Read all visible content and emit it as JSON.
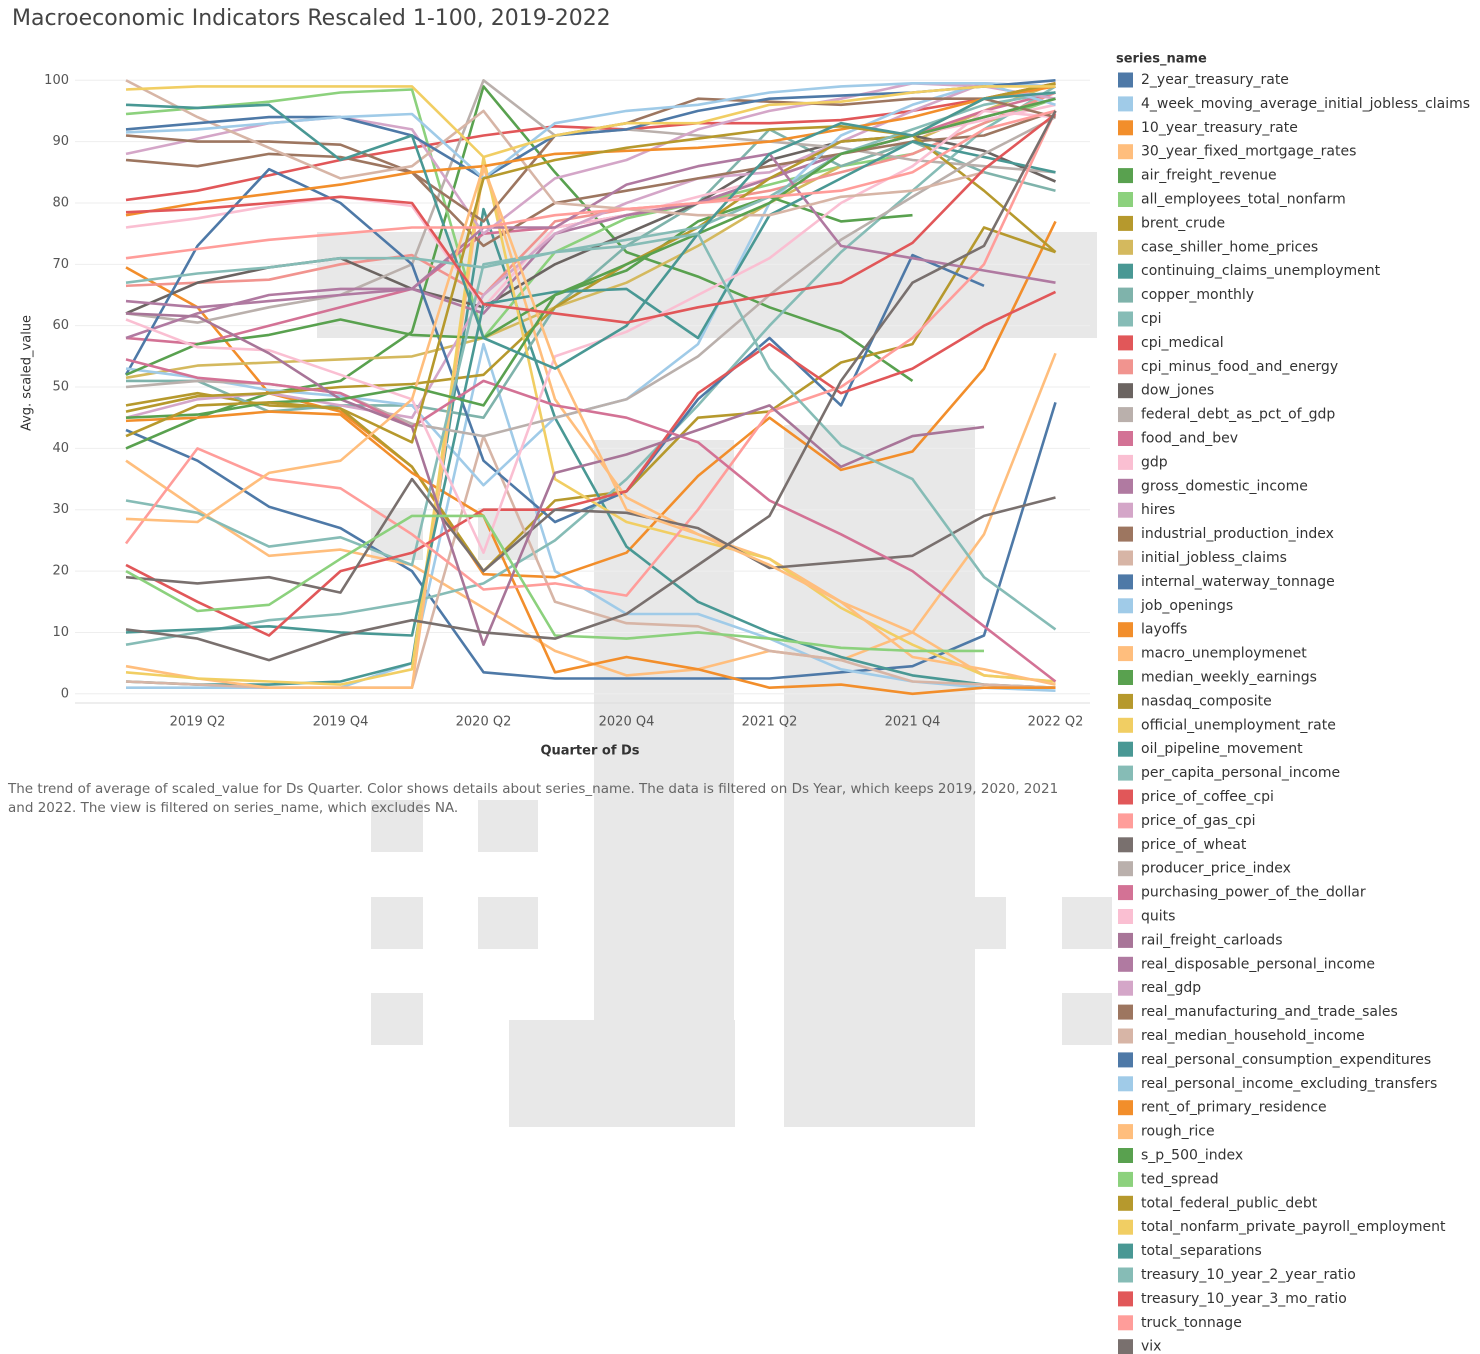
{
  "chart_data": {
    "type": "line",
    "title": "Macroeconomic Indicators Rescaled 1-100, 2019-2022",
    "x_label": "Quarter of Ds",
    "y_label": "Avg. scaled_value",
    "legend_title": "series_name",
    "caption": "The trend of average of scaled_value for Ds Quarter.  Color shows details about series_name. The data is filtered on Ds Year, which keeps 2019, 2020, 2021 and 2022. The view is filtered on series_name, which excludes NA.",
    "categories": [
      null,
      "2019 Q2",
      null,
      "2019 Q4",
      null,
      "2020 Q2",
      null,
      "2020 Q4",
      null,
      "2021 Q2",
      null,
      "2021 Q4",
      null,
      "2022 Q2"
    ],
    "ylim": [
      -1.5,
      102
    ],
    "yticks": [
      0,
      10,
      20,
      30,
      40,
      50,
      60,
      70,
      80,
      90,
      100
    ],
    "grid": true,
    "series": [
      {
        "name": "2_year_treasury_rate",
        "color": "#4e79a7",
        "values": [
          43,
          38,
          30.5,
          27,
          20,
          3.5,
          2.5,
          2.5,
          2.5,
          2.5,
          3.5,
          4.5,
          9.5,
          47.5
        ]
      },
      {
        "name": "4_week_moving_average_initial_jobless_claims",
        "color": "#a0cbe8",
        "values": [
          1,
          1,
          1,
          1,
          5,
          57,
          20,
          13,
          13,
          9,
          4,
          2,
          1,
          0.5
        ]
      },
      {
        "name": "10_year_treasury_rate",
        "color": "#f28e2b",
        "values": [
          69.5,
          63,
          49,
          46,
          37,
          19.5,
          19,
          23,
          35.5,
          45,
          36.5,
          39.5,
          53,
          77
        ]
      },
      {
        "name": "30_year_fixed_mortgage_rates",
        "color": "#ffbe7d",
        "values": [
          38,
          30,
          22.5,
          23.5,
          21,
          14,
          7,
          3,
          4,
          7,
          5.5,
          10,
          26,
          55.5
        ]
      },
      {
        "name": "air_freight_revenue",
        "color": "#59a14f",
        "values": [
          40,
          45,
          49,
          51,
          59,
          99,
          85,
          72,
          68,
          63,
          59,
          51,
          null,
          null
        ]
      },
      {
        "name": "all_employees_total_nonfarm",
        "color": "#8cd17d",
        "values": [
          94.5,
          95.5,
          96.5,
          98,
          98.5,
          58,
          72,
          77.5,
          80,
          83,
          86,
          88,
          93,
          97
        ]
      },
      {
        "name": "brent_crude",
        "color": "#b6992d",
        "values": [
          47,
          49,
          47,
          46.5,
          37,
          20,
          31.5,
          33,
          45,
          46,
          54,
          57,
          76,
          72
        ]
      },
      {
        "name": "case_shiller_home_prices",
        "color": "#d4b95e",
        "values": [
          51.5,
          53.5,
          54,
          54.5,
          55,
          58,
          63,
          67,
          73,
          80,
          86,
          90,
          95,
          99.5
        ]
      },
      {
        "name": "continuing_claims_unemployment",
        "color": "#499894",
        "values": [
          2,
          1.5,
          1.5,
          2,
          5,
          79,
          45,
          24,
          15,
          10,
          6,
          3,
          1.5,
          1
        ]
      },
      {
        "name": "copper_monthly",
        "color": "#7fb3ab",
        "values": [
          51,
          51,
          46,
          47,
          47,
          45,
          63,
          73,
          80,
          92,
          86,
          90,
          85,
          82
        ]
      },
      {
        "name": "cpi",
        "color": "#86bcb6",
        "values": [
          8,
          10,
          12,
          13,
          15,
          18,
          25,
          35,
          47,
          60,
          72,
          82,
          92,
          99
        ]
      },
      {
        "name": "cpi_medical",
        "color": "#e15759",
        "values": [
          80.5,
          82,
          84.5,
          87,
          89,
          91,
          92.5,
          92,
          93,
          93,
          93.5,
          95,
          97,
          99.5
        ]
      },
      {
        "name": "cpi_minus_food_and_energy",
        "color": "#f1948f",
        "values": [
          66.5,
          67,
          67.5,
          70,
          71.5,
          65,
          77,
          79,
          80,
          82,
          85,
          88,
          93,
          98
        ]
      },
      {
        "name": "dow_jones",
        "color": "#6b6461",
        "values": [
          62,
          67,
          69.5,
          71,
          66,
          63,
          70,
          75,
          80,
          87,
          90,
          91,
          88.5,
          83.5
        ]
      },
      {
        "name": "federal_debt_as_pct_of_gdp",
        "color": "#bab0ac",
        "values": [
          62,
          60.5,
          63,
          65,
          70,
          100,
          91,
          92,
          91,
          90,
          89,
          87,
          86,
          85
        ]
      },
      {
        "name": "food_and_bev",
        "color": "#d37295",
        "values": [
          58,
          57,
          60,
          63,
          66,
          75,
          76,
          78,
          80,
          84,
          88,
          91,
          95,
          98
        ]
      },
      {
        "name": "gdp",
        "color": "#fabfd2",
        "values": [
          76,
          77.5,
          79.5,
          81,
          79.5,
          63,
          76,
          78,
          81,
          84,
          88,
          91,
          93.5,
          96
        ]
      },
      {
        "name": "gross_domestic_income",
        "color": "#b07aa1",
        "values": [
          58,
          62,
          65,
          66,
          66,
          62,
          75,
          78,
          80,
          84,
          88,
          91,
          94,
          97
        ]
      },
      {
        "name": "hires",
        "color": "#d4a6c8",
        "values": [
          45,
          48,
          49,
          47,
          45,
          65,
          75,
          80,
          84,
          85,
          90,
          95,
          99.5,
          99
        ]
      },
      {
        "name": "industrial_production_index",
        "color": "#9d7660",
        "values": [
          87,
          86,
          88,
          87.5,
          85,
          73,
          80,
          82,
          84,
          86,
          88,
          90,
          91,
          95
        ]
      },
      {
        "name": "initial_jobless_claims",
        "color": "#d7b5a6",
        "values": [
          2,
          1.5,
          1,
          1,
          1,
          42,
          15,
          11.5,
          11,
          7,
          5.5,
          2,
          1.5,
          1
        ]
      },
      {
        "name": "internal_waterway_tonnage",
        "color": "#4e79a7",
        "values": [
          52,
          73,
          85.5,
          80,
          70,
          38,
          28,
          33,
          48,
          58,
          47,
          71.5,
          66.5,
          null
        ]
      },
      {
        "name": "job_openings",
        "color": "#a0cbe8",
        "values": [
          53,
          51.5,
          49.5,
          48.5,
          47,
          34,
          45,
          48,
          57,
          80,
          91,
          96,
          99.5,
          99
        ]
      },
      {
        "name": "layoffs",
        "color": "#f28e2b",
        "values": [
          44.5,
          45,
          46,
          45.5,
          36,
          29,
          3.5,
          6,
          4,
          1,
          1.5,
          0,
          1,
          1
        ]
      },
      {
        "name": "macro_unemploymenet",
        "color": "#ffbe7d",
        "values": [
          4.5,
          2.5,
          1,
          1,
          1,
          86,
          48,
          32,
          26,
          22,
          15,
          10,
          3,
          2
        ]
      },
      {
        "name": "median_weekly_earnings",
        "color": "#59a14f",
        "values": [
          52,
          57,
          58.5,
          61,
          58.5,
          58,
          65,
          69,
          77,
          81,
          77,
          78,
          null,
          null
        ]
      },
      {
        "name": "nasdaq_composite",
        "color": "#b6992d",
        "values": [
          46,
          48.5,
          49,
          50,
          50.5,
          52,
          63,
          70,
          76,
          84,
          90,
          91,
          82,
          72
        ]
      },
      {
        "name": "official_unemployment_rate",
        "color": "#f1ce63",
        "values": [
          3.5,
          2.5,
          2,
          1.5,
          4,
          87.5,
          35,
          28,
          25,
          22,
          14,
          8,
          3,
          2
        ]
      },
      {
        "name": "oil_pipeline_movement",
        "color": "#499894",
        "values": [
          10,
          10.5,
          11,
          10,
          9.5,
          63.5,
          65.5,
          66,
          58,
          78,
          84,
          90,
          87.5,
          85
        ]
      },
      {
        "name": "per_capita_personal_income",
        "color": "#86bcb6",
        "values": [
          31.5,
          29.5,
          24,
          25.5,
          21,
          70,
          72,
          74,
          76,
          81,
          88,
          92,
          96,
          98
        ]
      },
      {
        "name": "price_of_coffee_cpi",
        "color": "#e15759",
        "values": [
          21,
          15,
          9.5,
          20,
          23,
          30,
          30,
          33,
          49,
          57,
          49,
          53,
          60,
          65.5
        ]
      },
      {
        "name": "price_of_gas_cpi",
        "color": "#ff9d9a",
        "values": [
          24.5,
          40,
          35,
          33.5,
          26,
          17,
          18,
          16,
          30,
          46,
          50,
          58,
          70,
          95
        ]
      },
      {
        "name": "price_of_wheat",
        "color": "#79706e",
        "values": [
          19,
          18,
          19,
          16.5,
          35,
          20,
          30,
          29.5,
          27,
          20.5,
          21.5,
          22.5,
          29,
          32
        ]
      },
      {
        "name": "producer_price_index",
        "color": "#bab0ac",
        "values": [
          50,
          51,
          50.5,
          49,
          44,
          42,
          45,
          48,
          55,
          65,
          74,
          81,
          88,
          94
        ]
      },
      {
        "name": "purchasing_power_of_the_dollar",
        "color": "#d37295",
        "values": [
          54.5,
          51.5,
          50.5,
          49,
          43.5,
          51,
          47,
          45,
          41,
          31.5,
          26,
          20,
          11,
          2
        ]
      },
      {
        "name": "quits",
        "color": "#fabfd2",
        "values": [
          61,
          56.5,
          56,
          52,
          48,
          23,
          55,
          59,
          65,
          71,
          80,
          86,
          95,
          94
        ]
      },
      {
        "name": "rail_freight_carloads",
        "color": "#a87598",
        "values": [
          62,
          61.5,
          55.5,
          48,
          43.5,
          8,
          36,
          39,
          43,
          47,
          37,
          42,
          43.5,
          null
        ]
      },
      {
        "name": "real_disposable_personal_income",
        "color": "#b07aa1",
        "values": [
          64,
          63,
          64,
          65,
          66,
          76,
          76,
          83,
          86,
          88,
          73,
          71,
          69,
          67
        ]
      },
      {
        "name": "real_gdp",
        "color": "#d4a6c8",
        "values": [
          88,
          90.5,
          93,
          94,
          92,
          75,
          84,
          87,
          92,
          95,
          97,
          99.5,
          99,
          97
        ]
      },
      {
        "name": "real_manufacturing_and_trade_sales",
        "color": "#9d7660",
        "values": [
          91,
          90,
          90,
          89.5,
          85,
          77,
          91,
          93,
          97,
          96.5,
          96,
          97,
          97,
          94
        ]
      },
      {
        "name": "real_median_household_income",
        "color": "#d7b5a6",
        "values": [
          100,
          94,
          89,
          84,
          86,
          95,
          80,
          79,
          78,
          78,
          81,
          82,
          85,
          null
        ]
      },
      {
        "name": "real_personal_consumption_expenditures",
        "color": "#4e79a7",
        "values": [
          92,
          93,
          94,
          94,
          91,
          84,
          91,
          92,
          95,
          97,
          97.5,
          98,
          99,
          100
        ]
      },
      {
        "name": "real_personal_income_excluding_transfers",
        "color": "#a0cbe8",
        "values": [
          91.5,
          92,
          93,
          94,
          94.5,
          84,
          93,
          95,
          96,
          98,
          99,
          99.5,
          99.5,
          96
        ]
      },
      {
        "name": "rent_of_primary_residence",
        "color": "#f28e2b",
        "values": [
          78,
          80,
          81.5,
          83,
          85,
          86,
          88,
          88.5,
          89,
          90,
          92,
          94,
          97,
          99
        ]
      },
      {
        "name": "rough_rice",
        "color": "#ffbe7d",
        "values": [
          28.5,
          28,
          36,
          38,
          48,
          86,
          54,
          30,
          26,
          21,
          15,
          6,
          4,
          1.5
        ]
      },
      {
        "name": "s_p_500_index",
        "color": "#59a14f",
        "values": [
          45,
          45.5,
          47.5,
          48,
          50,
          47,
          65,
          70,
          75,
          80,
          88,
          91,
          94,
          97
        ]
      },
      {
        "name": "ted_spread",
        "color": "#8cd17d",
        "values": [
          20,
          13.5,
          14.5,
          22,
          29,
          29,
          9.5,
          9,
          10,
          9,
          7.5,
          7,
          7,
          null
        ]
      },
      {
        "name": "total_federal_public_debt",
        "color": "#b6992d",
        "values": [
          42,
          47,
          47.5,
          46.5,
          41,
          84,
          87,
          89,
          90.5,
          92,
          92.5,
          91,
          97,
          99.5
        ]
      },
      {
        "name": "total_nonfarm_private_payroll_employment",
        "color": "#f1ce63",
        "values": [
          98.5,
          99,
          99,
          99,
          99,
          87.5,
          91,
          93,
          93,
          96,
          96.5,
          98,
          99,
          99
        ]
      },
      {
        "name": "total_separations",
        "color": "#499894",
        "values": [
          96,
          95.5,
          96,
          87,
          91,
          58,
          53,
          60,
          75,
          88,
          93,
          91,
          97,
          98
        ]
      },
      {
        "name": "treasury_10_year_2_year_ratio",
        "color": "#86bcb6",
        "values": [
          67,
          68.5,
          69.5,
          71,
          71,
          69.5,
          72,
          73,
          75,
          53,
          40.5,
          35,
          19,
          10.5
        ]
      },
      {
        "name": "treasury_10_year_3_mo_ratio",
        "color": "#e15759",
        "values": [
          78.5,
          79,
          80,
          81,
          80,
          63.5,
          62,
          60.5,
          63,
          65,
          67,
          73.5,
          85.5,
          94.5
        ]
      },
      {
        "name": "truck_tonnage",
        "color": "#ff9d9a",
        "values": [
          71,
          72.5,
          74,
          75,
          76,
          76,
          78,
          79,
          80,
          81,
          82,
          85,
          92,
          95
        ]
      },
      {
        "name": "vix",
        "color": "#79706e",
        "values": [
          10.5,
          9,
          5.5,
          9.5,
          12,
          10,
          9,
          13,
          21,
          29,
          51,
          67,
          73,
          95
        ]
      }
    ]
  }
}
